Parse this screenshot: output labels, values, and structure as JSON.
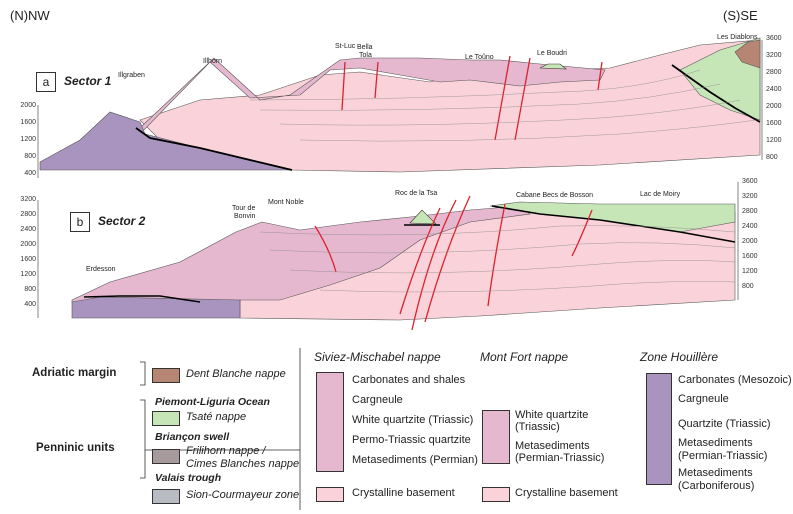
{
  "orientation": {
    "left": "(N)NW",
    "right": "(S)SE"
  },
  "sector1": {
    "letter": "a",
    "title": "Sector 1",
    "left_axis": [
      "2000",
      "1600",
      "1200",
      "800",
      "400"
    ],
    "right_axis": [
      "3600",
      "3200",
      "2800",
      "2400",
      "2000",
      "1600",
      "1200",
      "800"
    ],
    "places": {
      "illgraben": "Illgraben",
      "illhorn": "Illhorn",
      "stluc": "St-Luc",
      "bellatola_1": "Bella",
      "bellatola_2": "Tola",
      "letouno": "Le Toûno",
      "leboudri": "Le Boudri",
      "lesdiablons": "Les Diablons"
    }
  },
  "sector2": {
    "letter": "b",
    "title": "Sector 2",
    "left_axis": [
      "3200",
      "2800",
      "2400",
      "2000",
      "1600",
      "1200",
      "800",
      "400"
    ],
    "right_axis": [
      "3600",
      "3200",
      "2800",
      "2400",
      "2000",
      "1600",
      "1200",
      "800"
    ],
    "places": {
      "erdesson": "Erdesson",
      "tourdebonvin_1": "Tour de",
      "tourdebonvin_2": "Bonvin",
      "montnoble": "Mont Noble",
      "rocdelatsa": "Roc de la Tsa",
      "cabane": "Cabane Becs de Bosson",
      "lacdemoiry": "Lac de Moiry"
    }
  },
  "colors": {
    "basement": "#f9d3d9",
    "nappe_sm": "#e5b8cf",
    "houillere": "#a894bf",
    "tsate": "#c7e6b8",
    "dentblanche": "#b78574",
    "frilihorn": "#a69a9c",
    "sion": "#b8bcc2",
    "fault": "#e0202e",
    "thrust": "#000000"
  },
  "legend": {
    "adriatic_margin": "Adriatic margin",
    "dent_blanche": "Dent Blanche nappe",
    "penninic_units": "Penninic units",
    "piemont": "Piemont-Liguria Ocean",
    "tsate": "Tsaté nappe",
    "brianconnais": "Briançon swell",
    "frilihorn_1": "Frilihorn nappe /",
    "frilihorn_2": "Cimes Blanches nappe",
    "valais": "Valais trough",
    "sion": "Sion-Courmayeur zone",
    "siviez_title": "Siviez-Mischabel nappe",
    "siviez_items": [
      "Carbonates and shales",
      "Cargneule",
      "White quartzite (Triassic)",
      "Permo-Triassic quartzite",
      "Metasediments (Permian)"
    ],
    "siviez_basement": "Crystalline basement",
    "montfort_title": "Mont Fort nappe",
    "montfort_items": [
      "White quartzite",
      "(Triassic)",
      "Metasediments",
      "(Permian-Triassic)"
    ],
    "montfort_basement": "Crystalline basement",
    "houillere_title": "Zone Houillère",
    "houillere_items": [
      "Carbonates (Mesozoic)",
      "Cargneule",
      "Quartzite (Triassic)",
      "Metasediments",
      "(Permian-Triassic)",
      "Metasediments",
      "(Carboniferous)"
    ]
  }
}
